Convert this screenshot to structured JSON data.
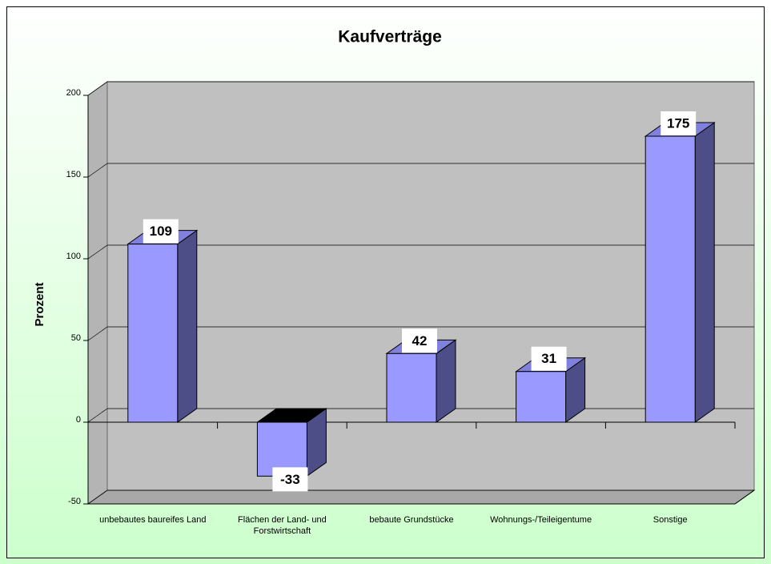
{
  "chart_data": {
    "type": "bar3d",
    "title": "Kaufverträge",
    "y_label": "Prozent",
    "categories": [
      "unbebautes baureifes Land",
      "Flächen der Land- und Forstwirtschaft",
      "bebaute Grundstücke",
      "Wohnungs-/Teileigentume",
      "Sonstige"
    ],
    "values": [
      109,
      -33,
      42,
      31,
      175
    ],
    "color": "#9999ff",
    "ylim": [
      -50,
      200
    ],
    "yticks": [
      -50,
      0,
      50,
      100,
      150,
      200
    ],
    "grid": true
  }
}
